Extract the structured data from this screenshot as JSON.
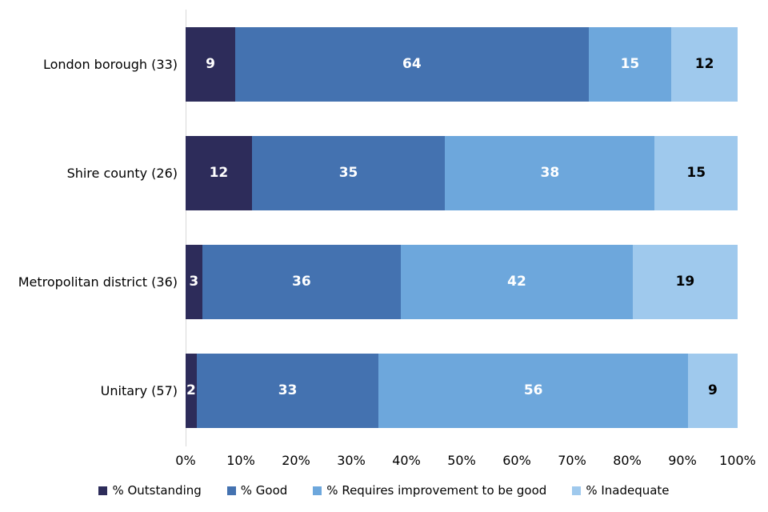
{
  "chart_data": {
    "type": "bar",
    "orientation": "horizontal",
    "stacked": true,
    "title": "",
    "xlabel": "",
    "ylabel": "",
    "xlim": [
      0,
      100
    ],
    "grid": false,
    "legend_position": "bottom",
    "categories": [
      "London borough (33)",
      "Shire county (26)",
      "Metropolitan district (36)",
      "Unitary (57)"
    ],
    "series": [
      {
        "name": "% Outstanding",
        "color": "#2d2c5a",
        "label_color": "#ffffff",
        "values": [
          9,
          12,
          3,
          2
        ]
      },
      {
        "name": "% Good",
        "color": "#4472b0",
        "label_color": "#ffffff",
        "values": [
          64,
          35,
          36,
          33
        ]
      },
      {
        "name": "% Requires improvement to be good",
        "color": "#6da7dc",
        "label_color": "#ffffff",
        "values": [
          15,
          38,
          42,
          56
        ]
      },
      {
        "name": "% Inadequate",
        "color": "#9fc9ed",
        "label_color": "#000000",
        "values": [
          12,
          15,
          19,
          9
        ]
      }
    ],
    "x_axis_ticks": [
      "0%",
      "10%",
      "20%",
      "30%",
      "40%",
      "50%",
      "60%",
      "70%",
      "80%",
      "90%",
      "100%"
    ],
    "axis_line_color": "#d9d9d9"
  }
}
